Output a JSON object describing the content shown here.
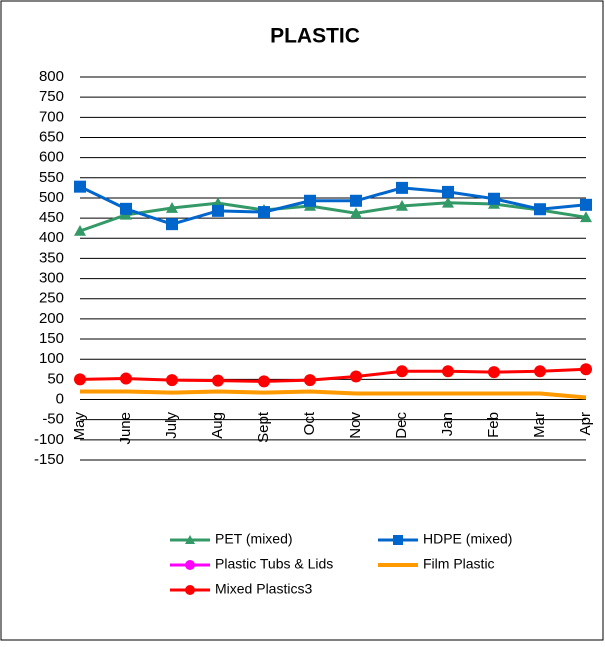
{
  "chart_data": {
    "type": "line",
    "title": "PLASTIC",
    "categories": [
      "May",
      "June",
      "July",
      "Aug",
      "Sept",
      "Oct",
      "Nov",
      "Dec",
      "Jan",
      "Feb",
      "Mar",
      "Apr"
    ],
    "series": [
      {
        "name": "PET (mixed)",
        "color": "#339966",
        "marker": "triangle",
        "values": [
          418,
          458,
          475,
          487,
          470,
          480,
          462,
          480,
          488,
          485,
          470,
          452
        ]
      },
      {
        "name": "HDPE (mixed)",
        "color": "#0066cc",
        "marker": "square",
        "values": [
          528,
          473,
          435,
          468,
          465,
          493,
          493,
          525,
          515,
          498,
          472,
          483
        ]
      },
      {
        "name": "Plastic Tubs & Lids",
        "color": "#ff00ff",
        "marker": "circle",
        "values": [
          null,
          null,
          null,
          null,
          null,
          null,
          null,
          null,
          null,
          null,
          null,
          null
        ]
      },
      {
        "name": "Film Plastic",
        "color": "#ff9900",
        "marker": "none",
        "values": [
          20,
          20,
          17,
          20,
          17,
          20,
          15,
          15,
          15,
          15,
          15,
          5
        ]
      },
      {
        "name": "Mixed Plastics3",
        "color": "#ff0000",
        "marker": "circle",
        "values": [
          50,
          52,
          48,
          47,
          45,
          48,
          57,
          70,
          70,
          68,
          70,
          75
        ]
      }
    ],
    "ylim": [
      -150,
      800
    ],
    "yticks": [
      -150,
      -100,
      -50,
      0,
      50,
      100,
      150,
      200,
      250,
      300,
      350,
      400,
      450,
      500,
      550,
      600,
      650,
      700,
      750,
      800
    ],
    "grid": true
  }
}
